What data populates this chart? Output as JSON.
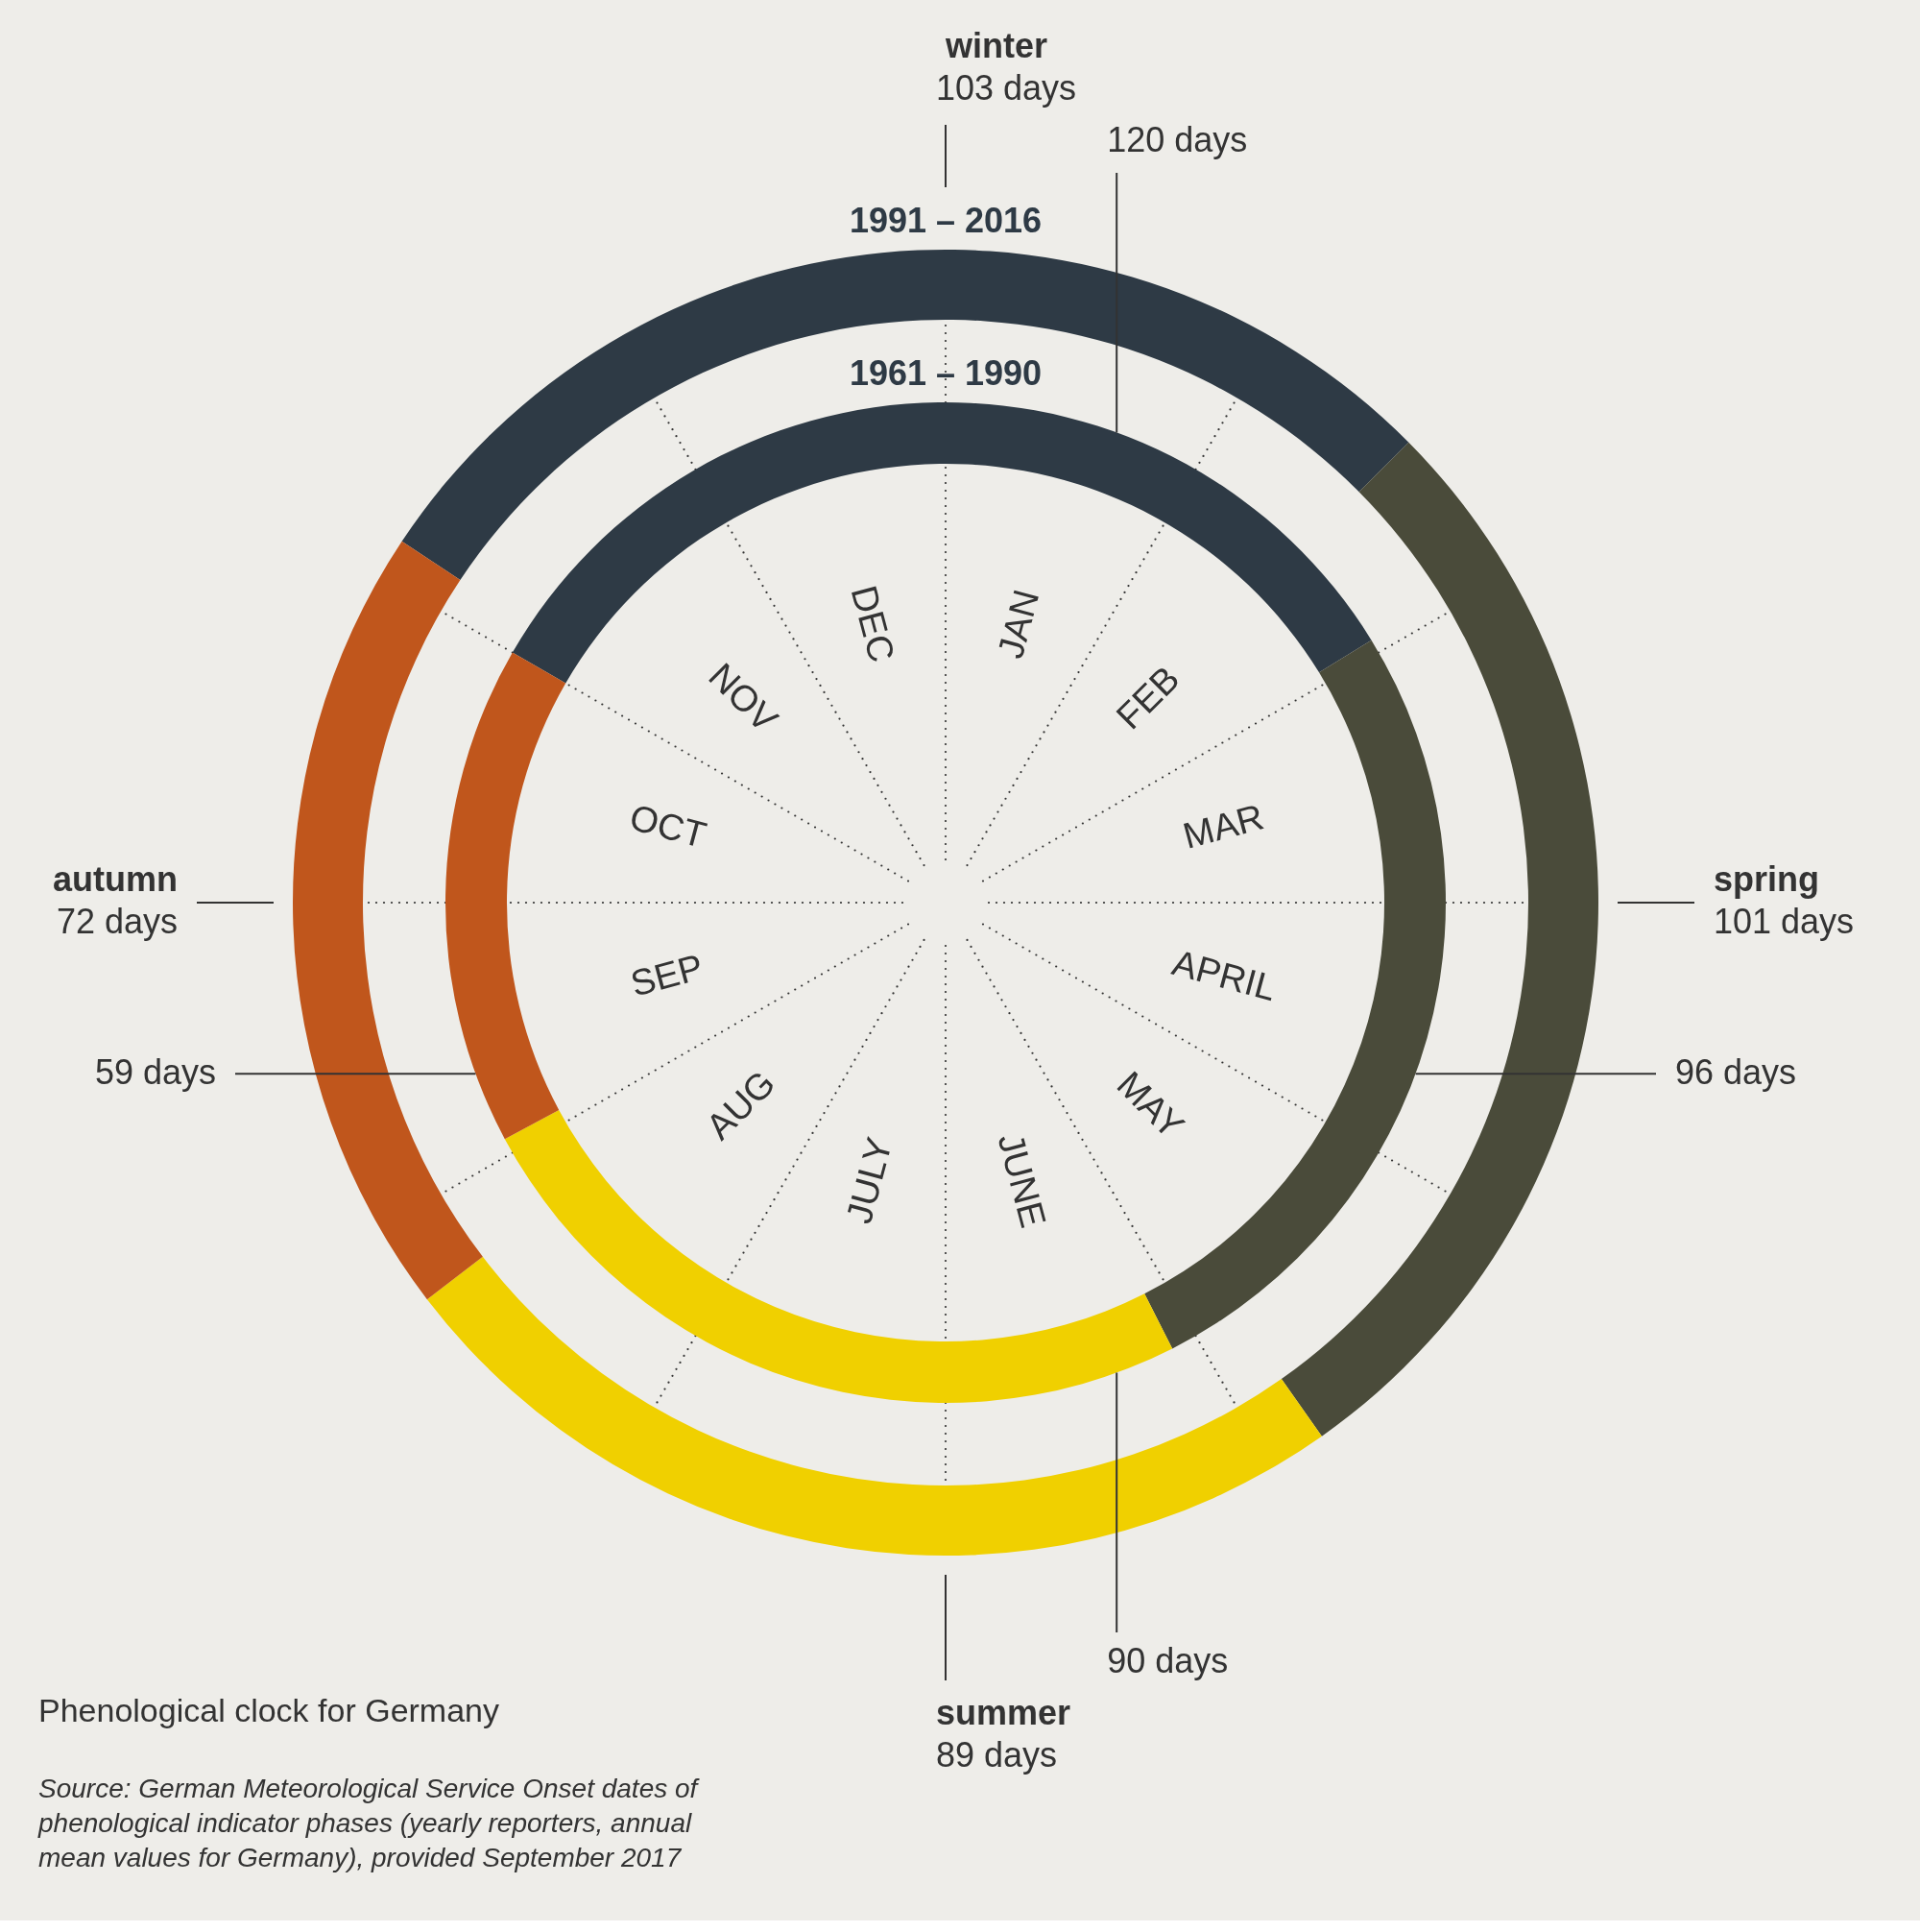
{
  "chart_data": {
    "type": "donut",
    "title": "Phenological clock for Germany",
    "categories": [
      "winter",
      "spring",
      "summer",
      "autumn"
    ],
    "colors": [
      "#2e3a45",
      "#4a4b3a",
      "#f0d000",
      "#c0561c"
    ],
    "series": [
      {
        "name": "1991 – 2016",
        "values": [
          103,
          101,
          89,
          72
        ],
        "value_labels": [
          "103 days",
          "101 days",
          "89 days",
          "72 days"
        ]
      },
      {
        "name": "1961 – 1990",
        "values": [
          120,
          96,
          90,
          59
        ],
        "value_labels": [
          "120 days",
          "96 days",
          "90 days",
          "59 days"
        ]
      }
    ],
    "legend": false,
    "annotations": [
      "DEC",
      "JAN",
      "FEB",
      "MAR",
      "APRIL",
      "MAY",
      "JUNE",
      "JULY",
      "AUG",
      "SEP",
      "OCT",
      "NOV",
      "Source: German Meteorological Service Onset dates of phenological indicator phases (yearly reporters, annual mean values for Germany), provided September 2017"
    ]
  }
}
